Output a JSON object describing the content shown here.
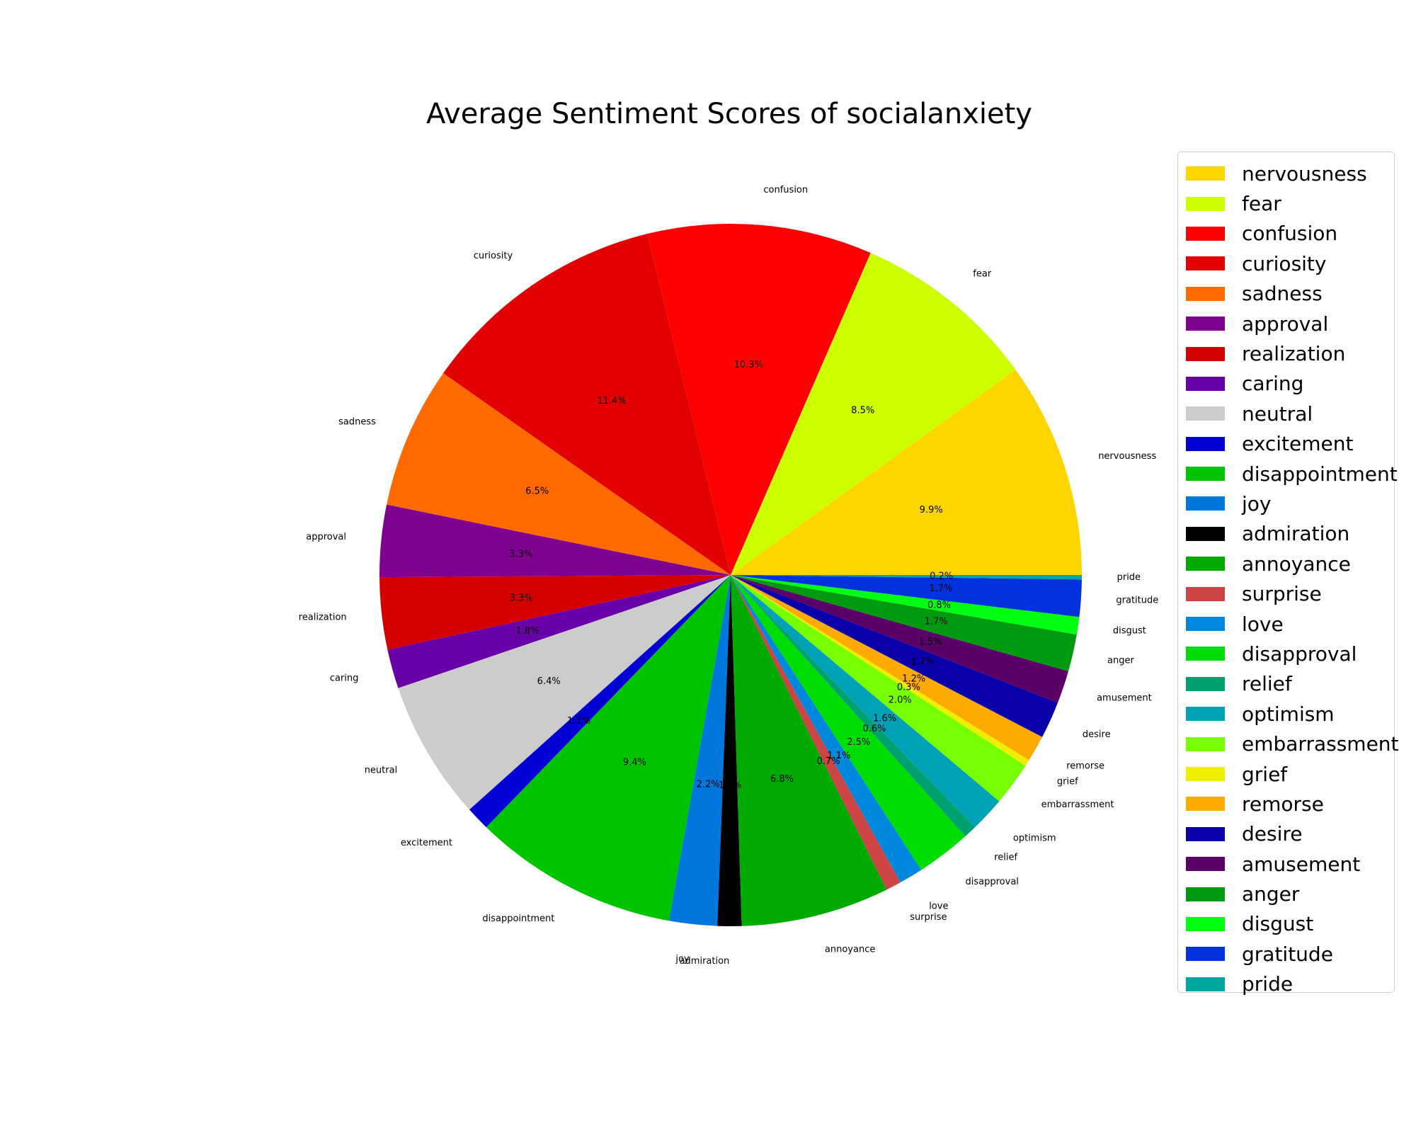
{
  "chart_data": {
    "type": "pie",
    "title": "Average Sentiment Scores of socialanxiety",
    "start_angle_deg": 0,
    "direction": "counterclockwise",
    "legend_position": "right",
    "slices": [
      {
        "label": "nervousness",
        "pct_label": "9.9%",
        "value": 9.9,
        "color": "#ffd500"
      },
      {
        "label": "fear",
        "pct_label": "8.5%",
        "value": 8.5,
        "color": "#ccff00"
      },
      {
        "label": "confusion",
        "pct_label": "10.3%",
        "value": 10.3,
        "color": "#ff0000"
      },
      {
        "label": "curiosity",
        "pct_label": "11.4%",
        "value": 11.4,
        "color": "#e30000"
      },
      {
        "label": "sadness",
        "pct_label": "6.5%",
        "value": 6.5,
        "color": "#ff6a00"
      },
      {
        "label": "approval",
        "pct_label": "3.3%",
        "value": 3.3,
        "color": "#800090"
      },
      {
        "label": "realization",
        "pct_label": "3.3%",
        "value": 3.3,
        "color": "#d40000"
      },
      {
        "label": "caring",
        "pct_label": "1.8%",
        "value": 1.8,
        "color": "#6a00a8"
      },
      {
        "label": "neutral",
        "pct_label": "6.4%",
        "value": 6.4,
        "color": "#cccccc"
      },
      {
        "label": "excitement",
        "pct_label": "1.1%",
        "value": 1.1,
        "color": "#0000d4"
      },
      {
        "label": "disappointment",
        "pct_label": "9.4%",
        "value": 9.4,
        "color": "#00c400"
      },
      {
        "label": "joy",
        "pct_label": "2.2%",
        "value": 2.2,
        "color": "#0077dd"
      },
      {
        "label": "admiration",
        "pct_label": "1.1%",
        "value": 1.1,
        "color": "#000000"
      },
      {
        "label": "annoyance",
        "pct_label": "6.8%",
        "value": 6.8,
        "color": "#00aa00"
      },
      {
        "label": "surprise",
        "pct_label": "0.7%",
        "value": 0.7,
        "color": "#cc4444"
      },
      {
        "label": "love",
        "pct_label": "1.1%",
        "value": 1.1,
        "color": "#0088dd"
      },
      {
        "label": "disapproval",
        "pct_label": "2.5%",
        "value": 2.5,
        "color": "#00dd00"
      },
      {
        "label": "relief",
        "pct_label": "0.6%",
        "value": 0.6,
        "color": "#00a070"
      },
      {
        "label": "optimism",
        "pct_label": "1.6%",
        "value": 1.6,
        "color": "#00a2b8"
      },
      {
        "label": "embarrassment",
        "pct_label": "2.0%",
        "value": 2.0,
        "color": "#77ff00"
      },
      {
        "label": "grief",
        "pct_label": "0.3%",
        "value": 0.3,
        "color": "#eeee00"
      },
      {
        "label": "remorse",
        "pct_label": "1.2%",
        "value": 1.2,
        "color": "#ffaa00"
      },
      {
        "label": "desire",
        "pct_label": "1.7%",
        "value": 1.7,
        "color": "#0a00aa"
      },
      {
        "label": "amusement",
        "pct_label": "1.5%",
        "value": 1.5,
        "color": "#5a0066"
      },
      {
        "label": "anger",
        "pct_label": "1.7%",
        "value": 1.7,
        "color": "#009a11"
      },
      {
        "label": "disgust",
        "pct_label": "0.8%",
        "value": 0.8,
        "color": "#00ff11"
      },
      {
        "label": "gratitude",
        "pct_label": "1.7%",
        "value": 1.7,
        "color": "#0033dd"
      },
      {
        "label": "pride",
        "pct_label": "0.2%",
        "value": 0.2,
        "color": "#00a8a0"
      }
    ]
  }
}
